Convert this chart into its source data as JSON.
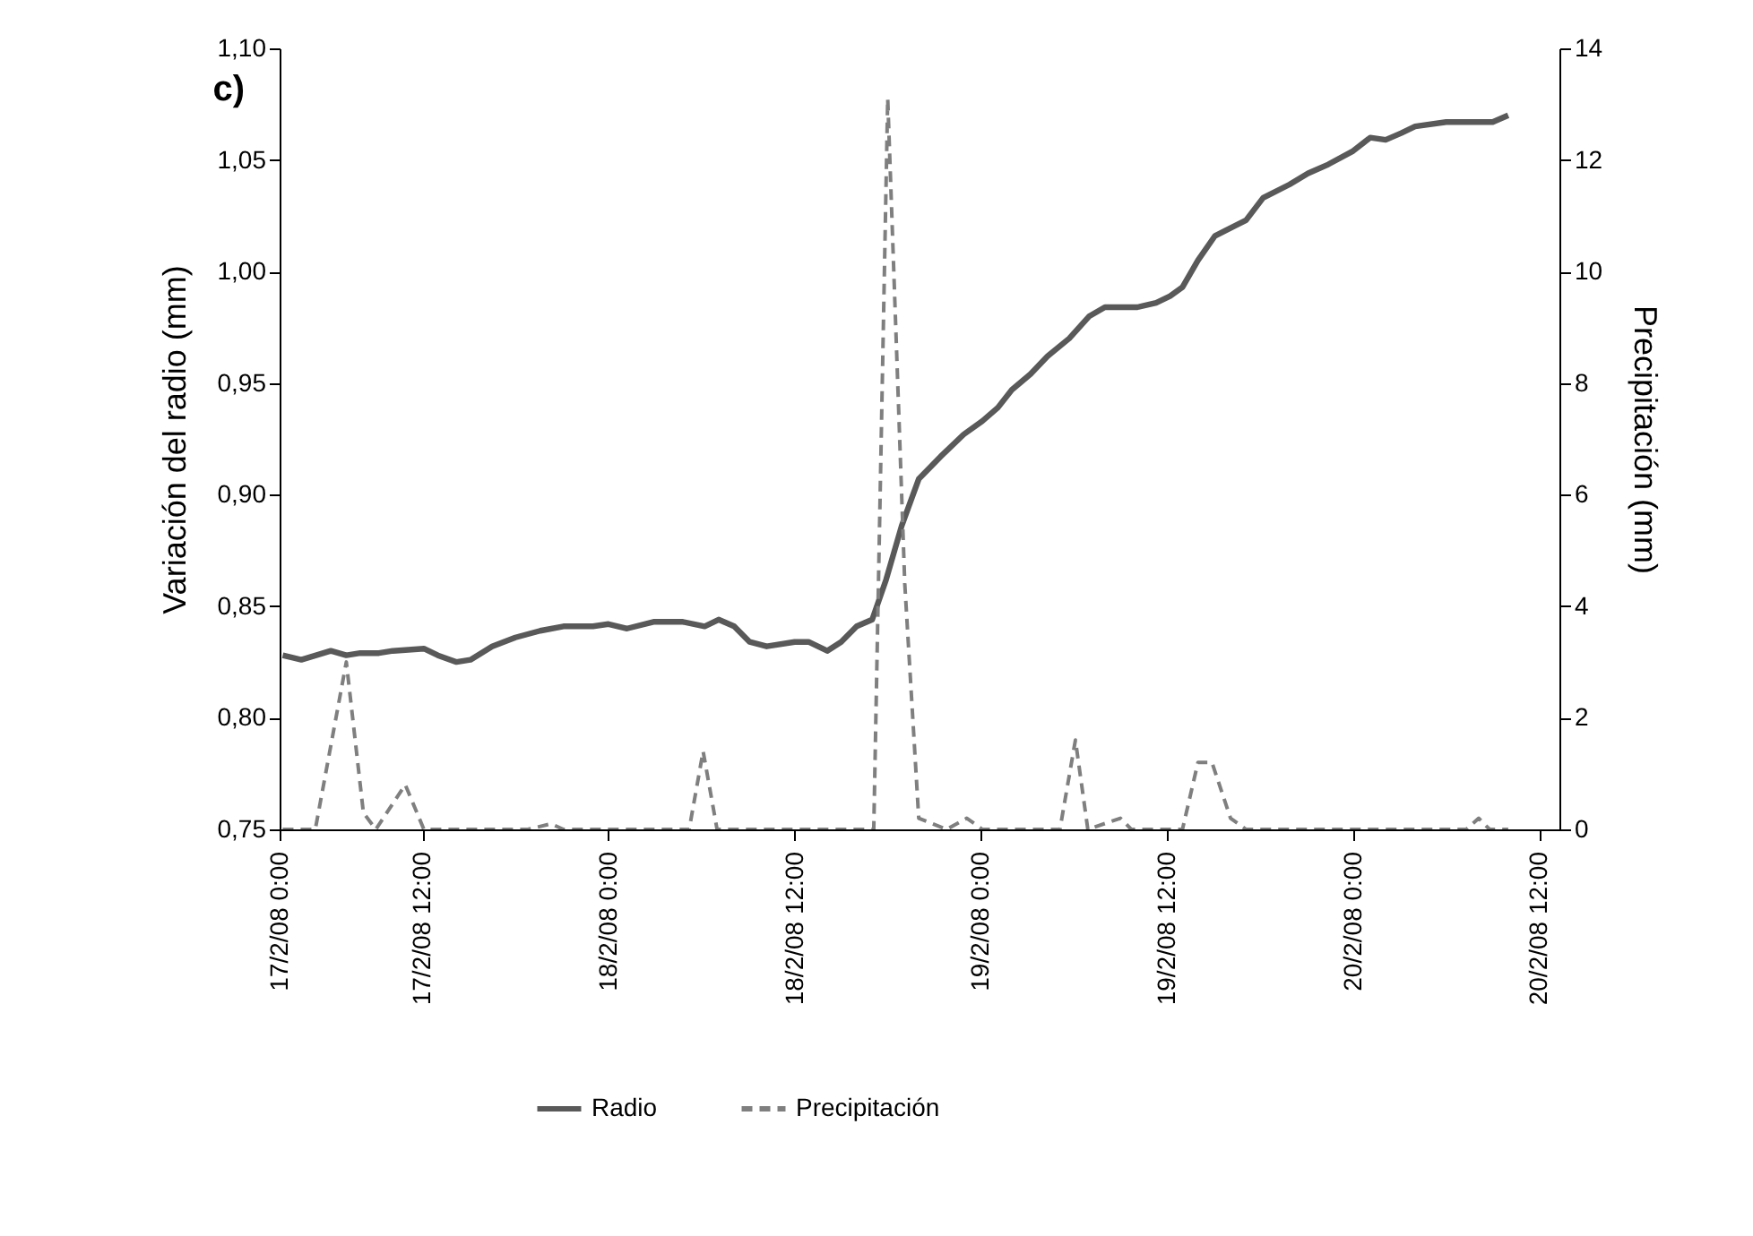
{
  "chart_data": {
    "type": "line",
    "title": "c)",
    "ylabel": "Variación del radio (mm)",
    "y2label": "Precipitación (mm)",
    "legend": "bottom",
    "grid": false,
    "marker": "none",
    "xlim": [
      "--02-17T02:48",
      "--02-20T13:18"
    ],
    "xticks": [
      {
        "value": "--02-17T02:48",
        "label": "17/2/08 0:00"
      },
      {
        "value": "--02-17T12:00",
        "label": "17/2/08 12:00"
      },
      {
        "value": "--02-18T00:00",
        "label": "18/2/08 0:00"
      },
      {
        "value": "--02-18T12:00",
        "label": "18/2/08 12:00"
      },
      {
        "value": "--02-19T00:00",
        "label": "19/2/08 0:00"
      },
      {
        "value": "--02-19T12:00",
        "label": "19/2/08 12:00"
      },
      {
        "value": "--02-20T00:00",
        "label": "20/2/08 0:00"
      },
      {
        "value": "--02-20T12:00",
        "label": "20/2/08 12:00"
      }
    ],
    "ylim": [
      0.75,
      1.1
    ],
    "yticks": [
      {
        "value": 0.75,
        "label": "0,75"
      },
      {
        "value": 0.8,
        "label": "0,80"
      },
      {
        "value": 0.85,
        "label": "0,85"
      },
      {
        "value": 0.9,
        "label": "0,90"
      },
      {
        "value": 0.95,
        "label": "0,95"
      },
      {
        "value": 1.0,
        "label": "1,00"
      },
      {
        "value": 1.05,
        "label": "1,05"
      },
      {
        "value": 1.1,
        "label": "1,10"
      }
    ],
    "y2lim": [
      0,
      14
    ],
    "y2ticks": [
      0,
      2,
      4,
      6,
      8,
      10,
      12,
      14
    ],
    "series": [
      {
        "name": "Radio",
        "color": "#595959",
        "line_style": "solid",
        "x": [
          "--02-17T03:00",
          "--02-17T04:12",
          "--02-17T06:06",
          "--02-17T07:06",
          "--02-17T08:00",
          "--02-17T09:12",
          "--02-17T10:06",
          "--02-17T12:06",
          "--02-17T13:00",
          "--02-17T14:12",
          "--02-17T15:06",
          "--02-17T16:30",
          "--02-17T18:00",
          "--02-17T19:36",
          "--02-17T21:06",
          "--02-17T23:00",
          "--02-18T00:00",
          "--02-18T01:12",
          "--02-18T02:54",
          "--02-18T04:48",
          "--02-18T06:12",
          "--02-18T07:06",
          "--02-18T08:06",
          "--02-18T09:06",
          "--02-18T10:12",
          "--02-18T12:00",
          "--02-18T12:54",
          "--02-18T14:06",
          "--02-18T15:00",
          "--02-18T16:00",
          "--02-18T17:00",
          "--02-18T17:54",
          "--02-18T18:54",
          "--02-18T20:00",
          "--02-18T21:24",
          "--02-18T22:54",
          "--02-19T00:06",
          "--02-19T01:06",
          "--02-19T02:00",
          "--02-19T03:12",
          "--02-19T04:18",
          "--02-19T05:42",
          "--02-19T07:00",
          "--02-19T08:00",
          "--02-19T09:00",
          "--02-19T10:06",
          "--02-19T11:18",
          "--02-19T12:12",
          "--02-19T13:00",
          "--02-19T14:00",
          "--02-19T15:06",
          "--02-19T17:06",
          "--02-19T18:12",
          "--02-19T19:54",
          "--02-19T21:06",
          "--02-19T22:24",
          "--02-20T00:00",
          "--02-20T01:06",
          "--02-20T02:06",
          "--02-20T03:06",
          "--02-20T04:00",
          "--02-20T06:00",
          "--02-20T09:00",
          "--02-20T10:00"
        ],
        "values": [
          0.828,
          0.826,
          0.83,
          0.828,
          0.829,
          0.829,
          0.83,
          0.831,
          0.828,
          0.825,
          0.826,
          0.832,
          0.836,
          0.839,
          0.841,
          0.841,
          0.842,
          0.84,
          0.843,
          0.843,
          0.841,
          0.844,
          0.841,
          0.834,
          0.832,
          0.834,
          0.834,
          0.83,
          0.834,
          0.841,
          0.844,
          0.862,
          0.886,
          0.907,
          0.917,
          0.927,
          0.933,
          0.939,
          0.947,
          0.954,
          0.962,
          0.97,
          0.98,
          0.984,
          0.984,
          0.984,
          0.986,
          0.989,
          0.993,
          1.005,
          1.016,
          1.023,
          1.033,
          1.039,
          1.044,
          1.048,
          1.054,
          1.06,
          1.059,
          1.062,
          1.065,
          1.067,
          1.067,
          1.07
        ]
      },
      {
        "name": "Precipitación",
        "color": "#7f7f7f",
        "line_style": "dashed",
        "axis": "y2",
        "x": [
          "--02-17T03:00",
          "--02-17T05:06",
          "--02-17T07:06",
          "--02-17T08:12",
          "--02-17T09:00",
          "--02-17T10:54",
          "--02-17T12:06",
          "--02-17T18:48",
          "--02-17T20:18",
          "--02-17T21:06",
          "--02-18T05:12",
          "--02-18T06:06",
          "--02-18T07:00",
          "--02-18T16:36",
          "--02-18T17:06",
          "--02-18T18:00",
          "--02-18T19:06",
          "--02-18T20:00",
          "--02-18T21:48",
          "--02-18T23:06",
          "--02-19T00:06",
          "--02-19T05:06",
          "--02-19T06:06",
          "--02-19T06:54",
          "--02-19T09:00",
          "--02-19T09:42",
          "--02-19T13:00",
          "--02-19T14:00",
          "--02-19T14:54",
          "--02-19T16:06",
          "--02-19T17:06",
          "--02-20T07:18",
          "--02-20T08:06",
          "--02-20T08:48",
          "--02-20T10:00"
        ],
        "values": [
          0,
          0,
          3.0,
          0.3,
          0,
          0.8,
          0,
          0,
          0.1,
          0,
          0,
          1.4,
          0,
          0,
          0,
          13.1,
          4.4,
          0.2,
          0,
          0.2,
          0,
          0,
          1.6,
          0,
          0.2,
          0,
          0,
          1.2,
          1.2,
          0.2,
          0,
          0,
          0.2,
          0,
          0
        ]
      }
    ]
  }
}
